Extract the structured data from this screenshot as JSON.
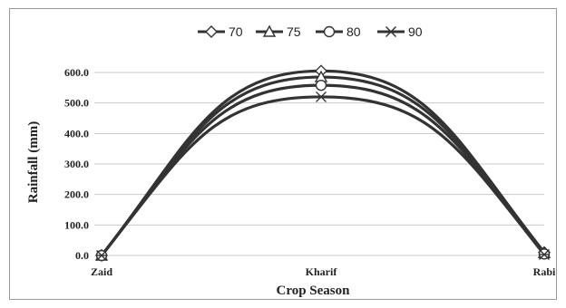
{
  "chart_data": {
    "type": "line",
    "title": "",
    "xlabel": "Crop Season",
    "ylabel": "Rainfall (mm)",
    "categories": [
      "Zaid",
      "Kharif",
      "Rabi"
    ],
    "ylim": [
      0,
      650
    ],
    "yticks": [
      0,
      100,
      200,
      300,
      400,
      500,
      600
    ],
    "ytick_labels": [
      "0.0",
      "100.0",
      "200.0",
      "300.0",
      "400.0",
      "500.0",
      "600.0"
    ],
    "grid": "horizontal",
    "legend_position": "top",
    "series": [
      {
        "name": "70",
        "marker": "diamond",
        "values": [
          0,
          605,
          10
        ]
      },
      {
        "name": "75",
        "marker": "triangle",
        "values": [
          0,
          585,
          8
        ]
      },
      {
        "name": "80",
        "marker": "circle",
        "values": [
          0,
          558,
          5
        ]
      },
      {
        "name": "90",
        "marker": "asterisk",
        "values": [
          0,
          520,
          3
        ]
      }
    ],
    "line_color": "#333333",
    "grid_color": "#c8c8c8"
  }
}
